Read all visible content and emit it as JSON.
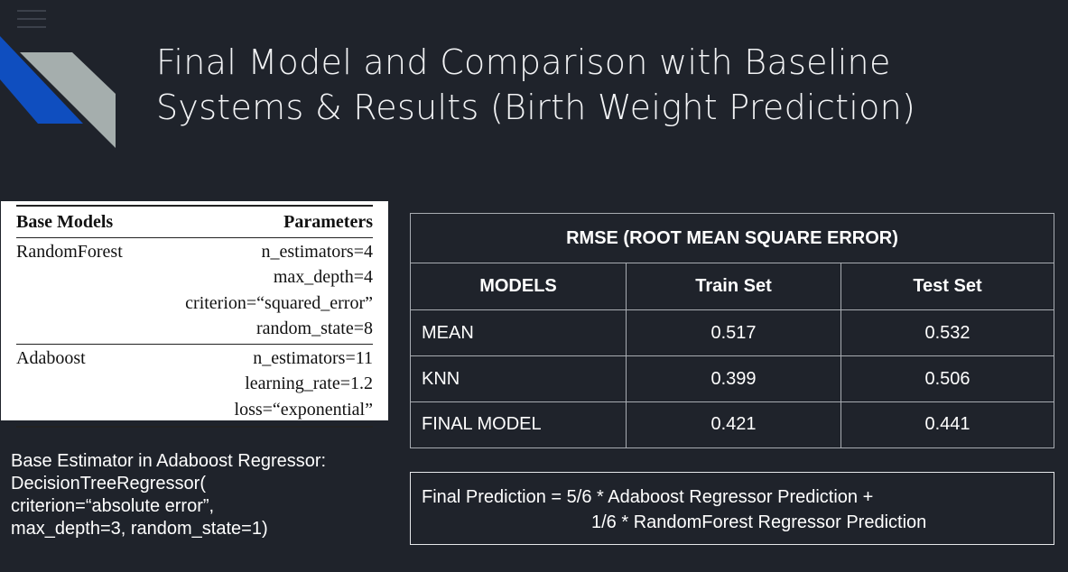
{
  "slide": {
    "title_lines": [
      "Final Model and Comparison with Baseline",
      "Systems & Results (Birth Weight Prediction)"
    ],
    "colors": {
      "background": "#1f232b",
      "accent_blue": "#0f4ebf",
      "accent_gray": "#a5aead"
    }
  },
  "base_models": {
    "headers": [
      "Base Models",
      "Parameters"
    ],
    "groups": [
      {
        "model": "RandomForest",
        "params": [
          "n_estimators=4",
          "max_depth=4",
          "criterion=“squared_error”",
          "random_state=8"
        ]
      },
      {
        "model": "Adaboost",
        "params": [
          "n_estimators=11",
          "learning_rate=1.2",
          "loss=“exponential”"
        ]
      }
    ]
  },
  "estimator_note": {
    "lines": [
      "Base Estimator in Adaboost Regressor:",
      "DecisionTreeRegressor(",
      "criterion=“absolute error”,",
      "max_depth=3, random_state=1)"
    ]
  },
  "rmse_table": {
    "caption": "RMSE (ROOT MEAN SQUARE ERROR)",
    "headers": [
      "MODELS",
      "Train Set",
      "Test Set"
    ],
    "rows": [
      {
        "model": "MEAN",
        "train": "0.517",
        "test": "0.532"
      },
      {
        "model": "KNN",
        "train": "0.399",
        "test": "0.506"
      },
      {
        "model": "FINAL MODEL",
        "train": "0.421",
        "test": "0.441"
      }
    ]
  },
  "final_prediction": {
    "line1": "Final Prediction = 5/6 * Adaboost Regressor Prediction +",
    "line2": "1/6 * RandomForest Regressor Prediction"
  }
}
